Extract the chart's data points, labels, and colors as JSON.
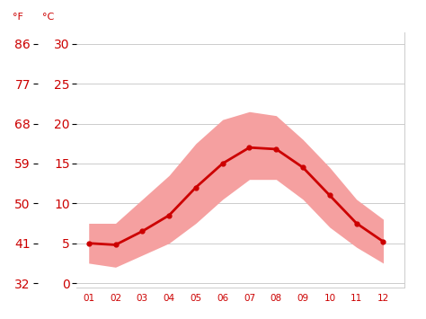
{
  "months": [
    1,
    2,
    3,
    4,
    5,
    6,
    7,
    8,
    9,
    10,
    11,
    12
  ],
  "mean_temp_c": [
    5.0,
    4.8,
    6.5,
    8.5,
    12.0,
    15.0,
    17.0,
    16.8,
    14.5,
    11.0,
    7.5,
    5.2
  ],
  "band_upper_c": [
    7.5,
    7.5,
    10.5,
    13.5,
    17.5,
    20.5,
    21.5,
    21.0,
    18.0,
    14.5,
    10.5,
    8.0
  ],
  "band_lower_c": [
    2.5,
    2.0,
    3.5,
    5.0,
    7.5,
    10.5,
    13.0,
    13.0,
    10.5,
    7.0,
    4.5,
    2.5
  ],
  "tick_labels_x": [
    "01",
    "02",
    "03",
    "04",
    "05",
    "06",
    "07",
    "08",
    "09",
    "10",
    "11",
    "12"
  ],
  "yticks_c": [
    0,
    5,
    10,
    15,
    20,
    25,
    30
  ],
  "yticks_f": [
    32,
    41,
    50,
    59,
    68,
    77,
    86
  ],
  "line_color": "#cc0000",
  "band_color": "#f5a0a0",
  "grid_color": "#cccccc",
  "label_color": "#cc0000",
  "bg_color": "#ffffff",
  "left_label_f": "°F",
  "left_label_c": "°C",
  "ylim_c": [
    -0.5,
    31.5
  ],
  "xlim": [
    0.55,
    12.8
  ]
}
